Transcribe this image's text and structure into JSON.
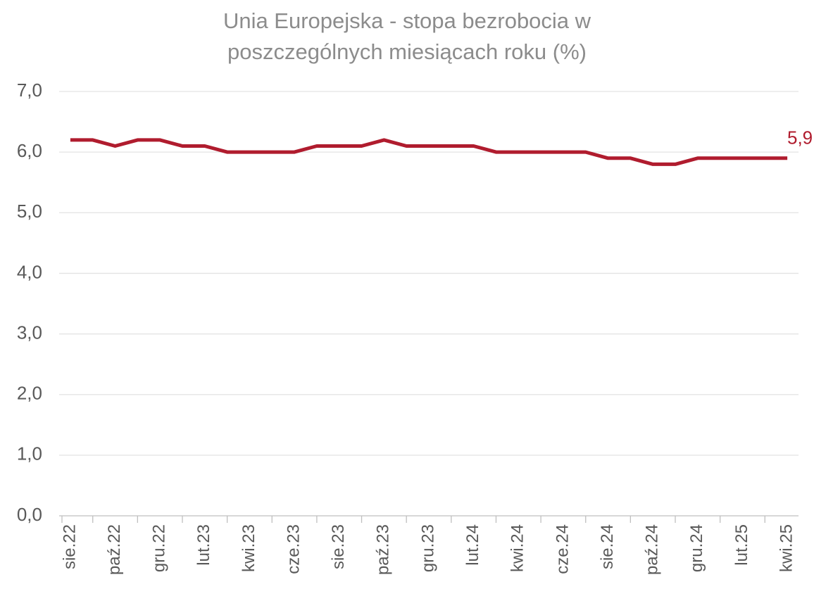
{
  "chart_data": {
    "type": "line",
    "title": "Unia Europejska - stopa bezrobocia w poszczególnych miesiącach roku (%)",
    "categories": [
      "sie.22",
      null,
      "paź.22",
      null,
      "gru.22",
      null,
      "lut.23",
      null,
      "kwi.23",
      null,
      "cze.23",
      null,
      "sie.23",
      null,
      "paź.23",
      null,
      "gru.23",
      null,
      "lut.24",
      null,
      "kwi.24",
      null,
      "cze.24",
      null,
      "sie.24",
      null,
      "paź.24",
      null,
      "gru.24",
      null,
      "lut.25",
      null,
      "kwi.25"
    ],
    "series": [
      {
        "name": "Unia Europejska",
        "color": "#b01c2e",
        "values": [
          6.2,
          6.2,
          6.1,
          6.2,
          6.2,
          6.1,
          6.1,
          6.0,
          6.0,
          6.0,
          6.0,
          6.1,
          6.1,
          6.1,
          6.2,
          6.1,
          6.1,
          6.1,
          6.1,
          6.0,
          6.0,
          6.0,
          6.0,
          6.0,
          5.9,
          5.9,
          5.8,
          5.8,
          5.9,
          5.9,
          5.9,
          5.9,
          5.9
        ],
        "value_labels": [
          null,
          null,
          null,
          null,
          null,
          null,
          null,
          null,
          null,
          null,
          null,
          null,
          null,
          null,
          null,
          null,
          null,
          null,
          null,
          null,
          null,
          null,
          null,
          null,
          null,
          null,
          null,
          null,
          null,
          null,
          null,
          null,
          "5,9"
        ]
      }
    ],
    "ylim": [
      0,
      7
    ],
    "yticks": [
      {
        "value": 0,
        "label": "0,0"
      },
      {
        "value": 1,
        "label": "1,0"
      },
      {
        "value": 2,
        "label": "2,0"
      },
      {
        "value": 3,
        "label": "3,0"
      },
      {
        "value": 4,
        "label": "4,0"
      },
      {
        "value": 5,
        "label": "5,0"
      },
      {
        "value": 6,
        "label": "6,0"
      },
      {
        "value": 7,
        "label": "7,0"
      }
    ],
    "grid": true
  }
}
